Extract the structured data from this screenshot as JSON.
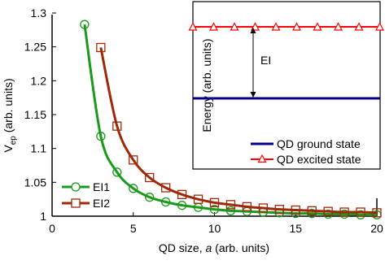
{
  "chart_data": {
    "type": "line",
    "xlabel_prefix": "QD size, ",
    "xlabel_var": "a",
    "xlabel_suffix": " (arb. units)",
    "ylabel_main": "V",
    "ylabel_sub": "ep",
    "ylabel_suffix": " (arb. units)",
    "xlim": [
      0,
      20
    ],
    "ylim": [
      1,
      1.3
    ],
    "xticks": [
      "0",
      "5",
      "10",
      "15",
      "20"
    ],
    "yticks": [
      "1",
      "1.05",
      "1.1",
      "1.15",
      "1.2",
      "1.25",
      "1.3"
    ],
    "grid": false,
    "legend_placement": "bottom-left",
    "series": [
      {
        "name": "EI1",
        "color": "#1a9a1a",
        "marker": "circle",
        "x": [
          2,
          3,
          4,
          5,
          6,
          7,
          8,
          9,
          10,
          11,
          12,
          13,
          14,
          15,
          16,
          17,
          18,
          19,
          20
        ],
        "y": [
          1.283,
          1.118,
          1.065,
          1.041,
          1.028,
          1.021,
          1.016,
          1.013,
          1.01,
          1.008,
          1.007,
          1.006,
          1.005,
          1.004,
          1.004,
          1.003,
          1.003,
          1.002,
          1.002
        ]
      },
      {
        "name": "EI2",
        "color": "#a0280a",
        "marker": "square",
        "x": [
          3,
          4,
          5,
          6,
          7,
          8,
          9,
          10,
          11,
          12,
          13,
          14,
          15,
          16,
          17,
          18,
          19,
          20
        ],
        "y": [
          1.249,
          1.133,
          1.083,
          1.057,
          1.042,
          1.032,
          1.025,
          1.02,
          1.017,
          1.014,
          1.012,
          1.01,
          1.009,
          1.008,
          1.007,
          1.006,
          1.006,
          1.005
        ]
      }
    ],
    "inset": {
      "ylabel": "Energy (arb. units)",
      "gap_label": "EI",
      "legend": [
        {
          "name": "QD ground state",
          "color": "#000080",
          "marker": "none"
        },
        {
          "name": "QD excited state",
          "color": "#ff0000",
          "marker": "triangle"
        }
      ]
    }
  }
}
